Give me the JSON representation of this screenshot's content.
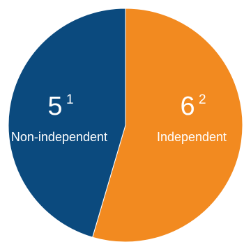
{
  "chart_data": {
    "type": "pie",
    "categories": [
      "Independent",
      "Non-independent"
    ],
    "values": [
      6,
      5
    ],
    "footnotes": [
      "2",
      "1"
    ],
    "colors": [
      "#F28A20",
      "#0B4A7E"
    ],
    "start_angle_deg": 0,
    "direction": "clockwise"
  }
}
